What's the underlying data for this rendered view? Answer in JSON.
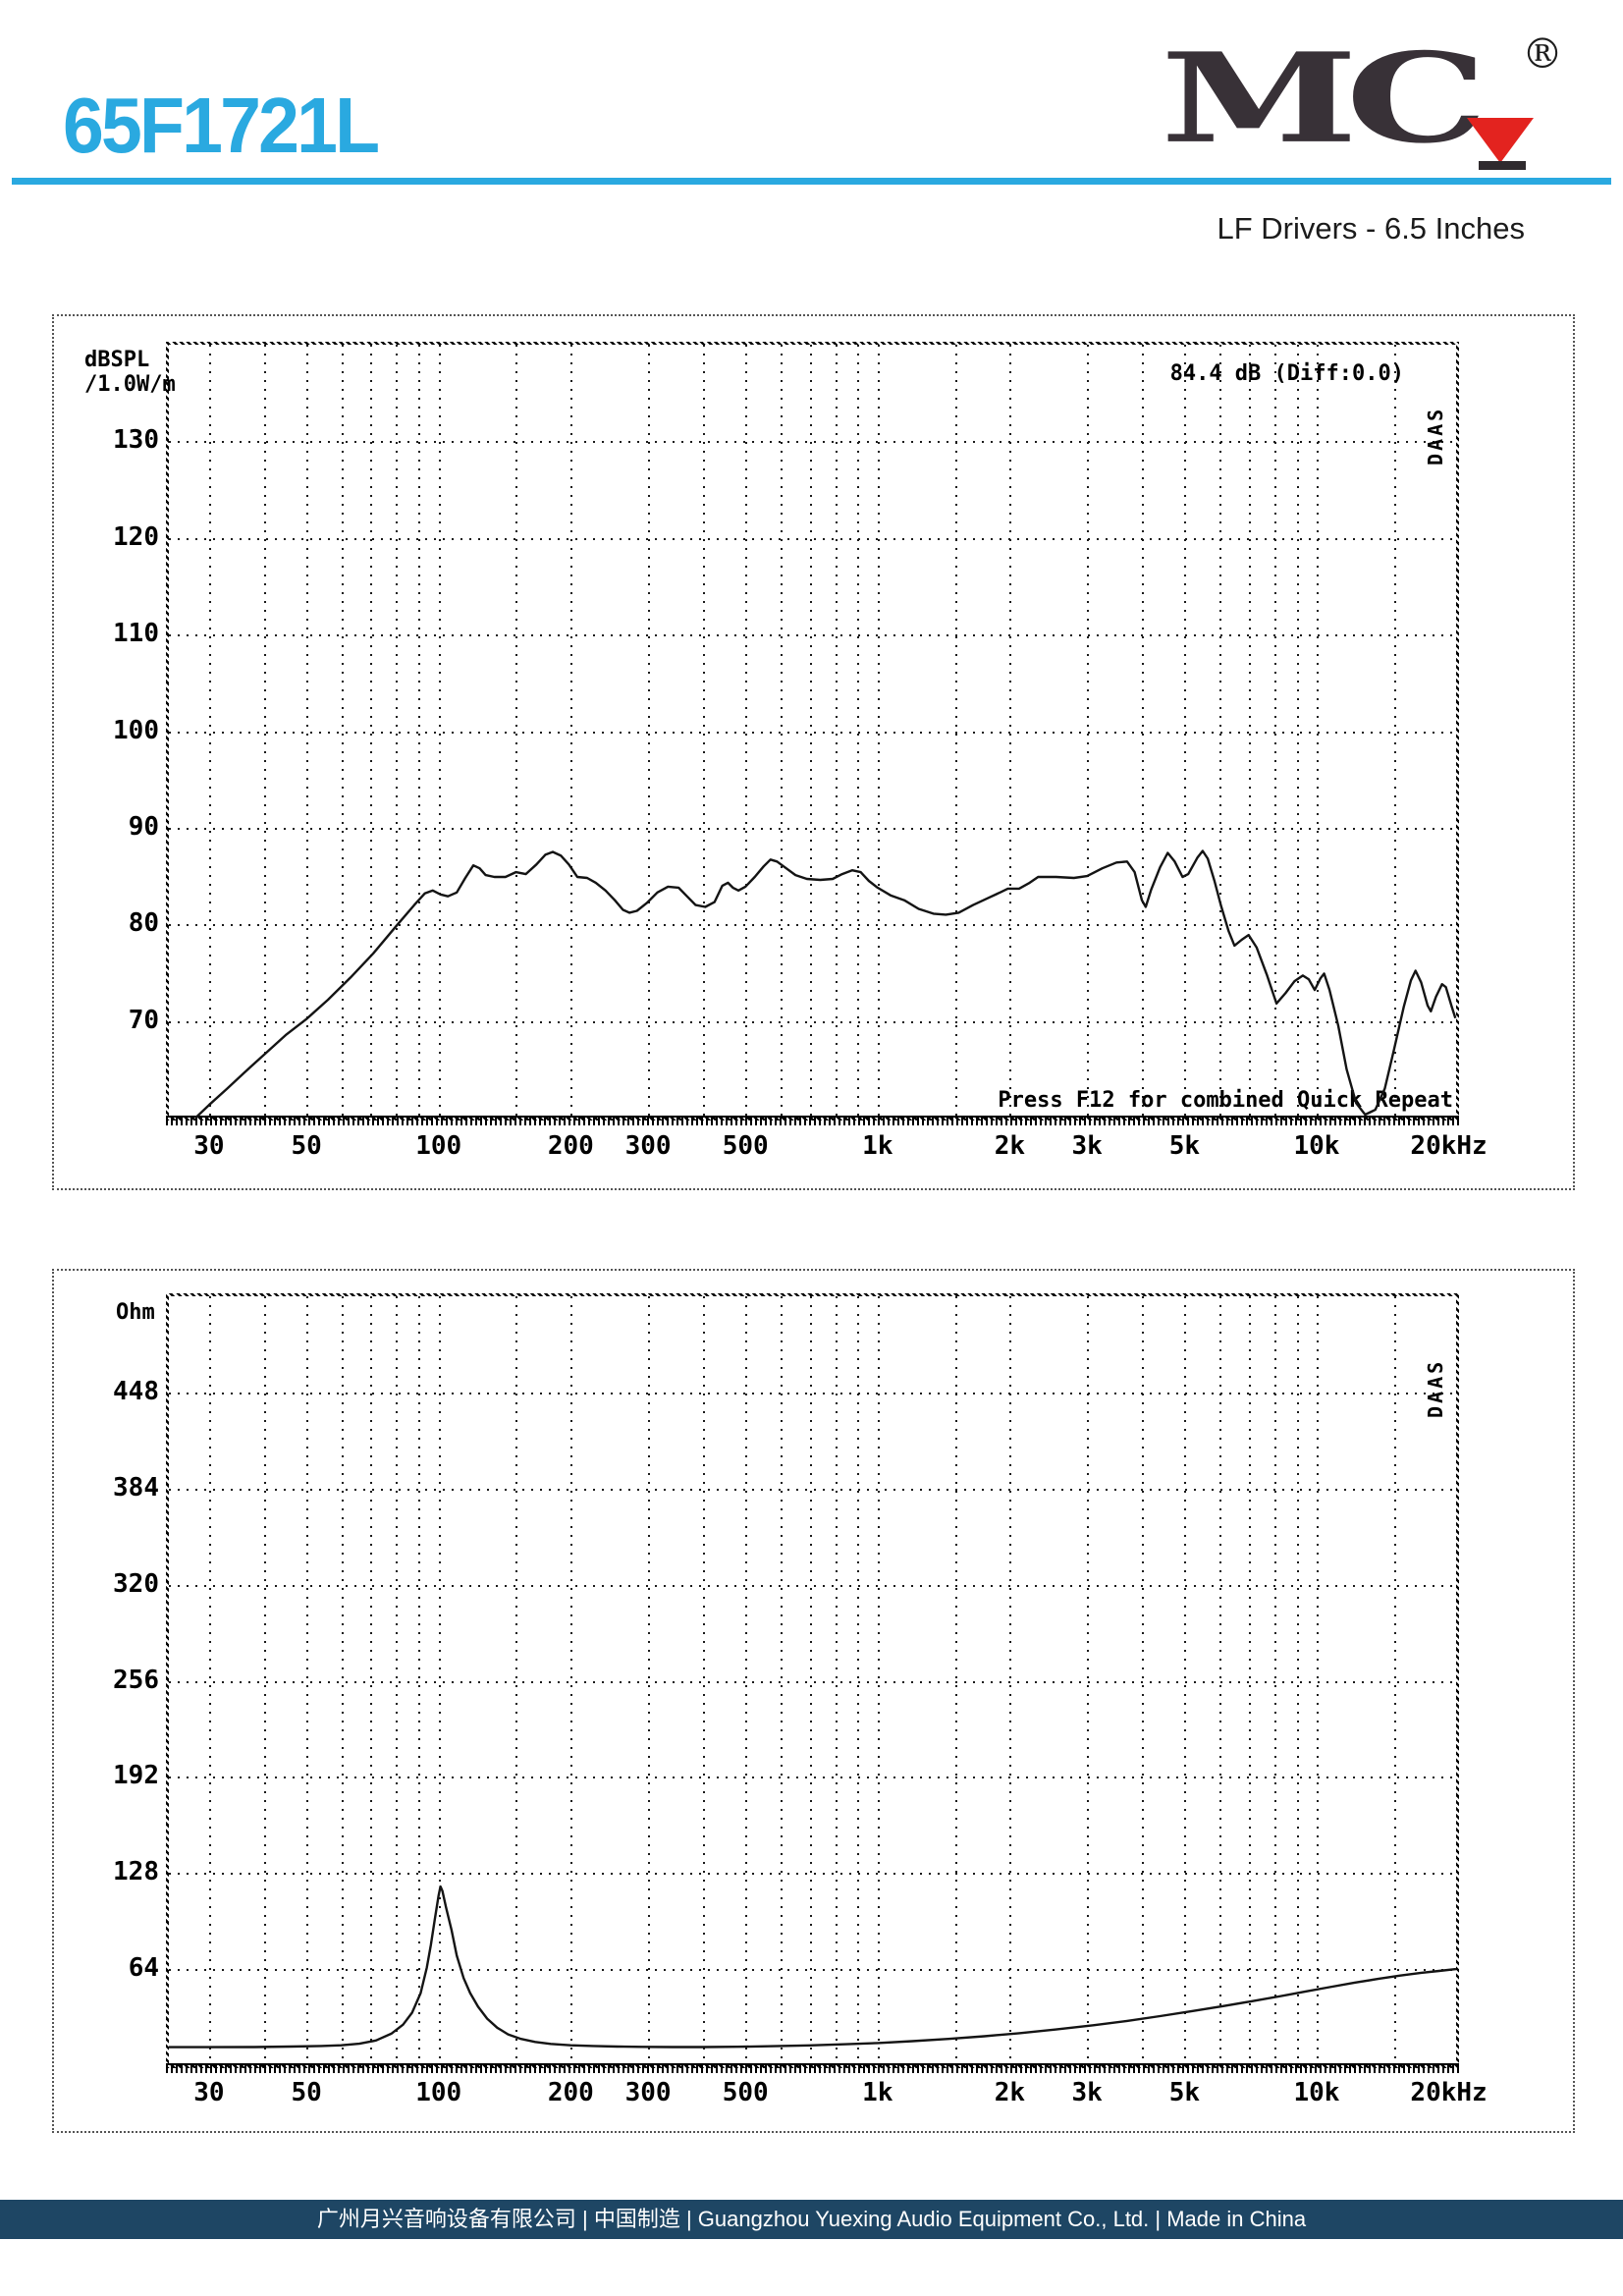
{
  "header": {
    "model": "65F1721L",
    "subtitle": "LF Drivers - 6.5 Inches",
    "accent_color": "#2aa9e0",
    "logo": {
      "m": "M",
      "c": "C",
      "reg": "®",
      "color": "#383137",
      "triangle_color": "#e3231f"
    }
  },
  "chart_data": [
    {
      "type": "line",
      "title": "SPL frequency response",
      "ylabel_lines": [
        "dBSPL",
        "/1.0W/m"
      ],
      "annotation": "84.4 dB (Diff:0.0)",
      "footnote": "Press F12 for combined Quick Repeat",
      "watermark": "DAAS",
      "xlim": [
        24.3,
        20780
      ],
      "ylim": [
        60,
        140
      ],
      "y_ticks": [
        130,
        120,
        110,
        100,
        90,
        80,
        70
      ],
      "x_ticks": [
        {
          "f": 30,
          "label": "30"
        },
        {
          "f": 50,
          "label": "50"
        },
        {
          "f": 100,
          "label": "100"
        },
        {
          "f": 200,
          "label": "200"
        },
        {
          "f": 300,
          "label": "300"
        },
        {
          "f": 500,
          "label": "500"
        },
        {
          "f": 1000,
          "label": "1k"
        },
        {
          "f": 2000,
          "label": "2k"
        },
        {
          "f": 3000,
          "label": "3k"
        },
        {
          "f": 5000,
          "label": "5k"
        },
        {
          "f": 10000,
          "label": "10k"
        },
        {
          "f": 20000,
          "label": "20kHz"
        }
      ],
      "grid_freqs": [
        30,
        40,
        50,
        60,
        70,
        80,
        90,
        100,
        150,
        200,
        300,
        400,
        500,
        600,
        700,
        800,
        900,
        1000,
        1500,
        2000,
        3000,
        4000,
        5000,
        6000,
        7000,
        8000,
        9000,
        10000,
        15000
      ],
      "points": [
        [
          28,
          60
        ],
        [
          30,
          61.3
        ],
        [
          33,
          63
        ],
        [
          36,
          64.6
        ],
        [
          40,
          66.5
        ],
        [
          45,
          68.6
        ],
        [
          50,
          70.2
        ],
        [
          56,
          72.2
        ],
        [
          63,
          74.5
        ],
        [
          71,
          77
        ],
        [
          80,
          79.8
        ],
        [
          88,
          82
        ],
        [
          93,
          83.2
        ],
        [
          97,
          83.5
        ],
        [
          101,
          83.1
        ],
        [
          105,
          82.9
        ],
        [
          110,
          83.3
        ],
        [
          115,
          84.8
        ],
        [
          120,
          86.1
        ],
        [
          124,
          85.8
        ],
        [
          128,
          85.1
        ],
        [
          134,
          84.9
        ],
        [
          142,
          84.9
        ],
        [
          150,
          85.4
        ],
        [
          158,
          85.2
        ],
        [
          167,
          86.2
        ],
        [
          175,
          87.2
        ],
        [
          182,
          87.5
        ],
        [
          190,
          87.1
        ],
        [
          198,
          86.2
        ],
        [
          207,
          84.9
        ],
        [
          218,
          84.8
        ],
        [
          228,
          84.3
        ],
        [
          240,
          83.5
        ],
        [
          252,
          82.5
        ],
        [
          263,
          81.5
        ],
        [
          272,
          81.2
        ],
        [
          283,
          81.4
        ],
        [
          298,
          82.2
        ],
        [
          315,
          83.3
        ],
        [
          333,
          83.9
        ],
        [
          352,
          83.8
        ],
        [
          368,
          82.9
        ],
        [
          385,
          82
        ],
        [
          405,
          81.8
        ],
        [
          425,
          82.3
        ],
        [
          443,
          84
        ],
        [
          456,
          84.3
        ],
        [
          468,
          83.8
        ],
        [
          482,
          83.5
        ],
        [
          500,
          83.9
        ],
        [
          525,
          84.9
        ],
        [
          550,
          86
        ],
        [
          570,
          86.7
        ],
        [
          590,
          86.5
        ],
        [
          615,
          85.9
        ],
        [
          650,
          85.1
        ],
        [
          690,
          84.7
        ],
        [
          740,
          84.6
        ],
        [
          790,
          84.7
        ],
        [
          830,
          85.2
        ],
        [
          875,
          85.6
        ],
        [
          915,
          85.4
        ],
        [
          955,
          84.5
        ],
        [
          1000,
          83.8
        ],
        [
          1070,
          83
        ],
        [
          1150,
          82.5
        ],
        [
          1240,
          81.6
        ],
        [
          1340,
          81.1
        ],
        [
          1430,
          81
        ],
        [
          1530,
          81.2
        ],
        [
          1650,
          82
        ],
        [
          1800,
          82.8
        ],
        [
          1900,
          83.3
        ],
        [
          1980,
          83.7
        ],
        [
          2100,
          83.7
        ],
        [
          2220,
          84.3
        ],
        [
          2320,
          84.9
        ],
        [
          2550,
          84.9
        ],
        [
          2800,
          84.8
        ],
        [
          3000,
          85
        ],
        [
          3250,
          85.8
        ],
        [
          3500,
          86.4
        ],
        [
          3700,
          86.5
        ],
        [
          3850,
          85.4
        ],
        [
          4000,
          82.5
        ],
        [
          4080,
          81.8
        ],
        [
          4200,
          83.6
        ],
        [
          4400,
          85.9
        ],
        [
          4580,
          87.4
        ],
        [
          4750,
          86.5
        ],
        [
          4950,
          84.9
        ],
        [
          5100,
          85.2
        ],
        [
          5350,
          86.9
        ],
        [
          5500,
          87.6
        ],
        [
          5650,
          86.8
        ],
        [
          5850,
          84.5
        ],
        [
          6050,
          82
        ],
        [
          6300,
          79.3
        ],
        [
          6500,
          77.8
        ],
        [
          6750,
          78.4
        ],
        [
          7000,
          78.9
        ],
        [
          7300,
          77.6
        ],
        [
          7700,
          74.8
        ],
        [
          8100,
          71.8
        ],
        [
          8500,
          72.9
        ],
        [
          8900,
          74.1
        ],
        [
          9300,
          74.7
        ],
        [
          9600,
          74.3
        ],
        [
          9900,
          73.2
        ],
        [
          10200,
          74.4
        ],
        [
          10400,
          74.9
        ],
        [
          10700,
          73.2
        ],
        [
          11200,
          69.5
        ],
        [
          11700,
          65
        ],
        [
          12300,
          61.5
        ],
        [
          12900,
          60.3
        ],
        [
          13600,
          60.8
        ],
        [
          14300,
          63
        ],
        [
          15000,
          67
        ],
        [
          15800,
          71.5
        ],
        [
          16400,
          74.2
        ],
        [
          16800,
          75.2
        ],
        [
          17300,
          74
        ],
        [
          17900,
          71.6
        ],
        [
          18200,
          71
        ],
        [
          18700,
          72.5
        ],
        [
          19300,
          73.8
        ],
        [
          19700,
          73.5
        ],
        [
          20300,
          71.5
        ],
        [
          20700,
          70.3
        ]
      ]
    },
    {
      "type": "line",
      "title": "Impedance curve",
      "ylabel_lines": [
        "Ohm"
      ],
      "watermark": "DAAS",
      "xlim": [
        24.3,
        20780
      ],
      "ylim": [
        0,
        512
      ],
      "y_ticks": [
        448,
        384,
        320,
        256,
        192,
        128,
        64
      ],
      "x_ticks": [
        {
          "f": 30,
          "label": "30"
        },
        {
          "f": 50,
          "label": "50"
        },
        {
          "f": 100,
          "label": "100"
        },
        {
          "f": 200,
          "label": "200"
        },
        {
          "f": 300,
          "label": "300"
        },
        {
          "f": 500,
          "label": "500"
        },
        {
          "f": 1000,
          "label": "1k"
        },
        {
          "f": 2000,
          "label": "2k"
        },
        {
          "f": 3000,
          "label": "3k"
        },
        {
          "f": 5000,
          "label": "5k"
        },
        {
          "f": 10000,
          "label": "10k"
        },
        {
          "f": 20000,
          "label": "20kHz"
        }
      ],
      "grid_freqs": [
        30,
        40,
        50,
        60,
        70,
        80,
        90,
        100,
        150,
        200,
        300,
        400,
        500,
        600,
        700,
        800,
        900,
        1000,
        1500,
        2000,
        3000,
        4000,
        5000,
        6000,
        7000,
        8000,
        9000,
        10000,
        15000
      ],
      "points": [
        [
          24.3,
          12
        ],
        [
          30,
          12
        ],
        [
          38,
          12.1
        ],
        [
          46,
          12.4
        ],
        [
          54,
          12.8
        ],
        [
          60,
          13.3
        ],
        [
          66,
          14.3
        ],
        [
          72,
          16.5
        ],
        [
          78,
          21
        ],
        [
          83,
          27
        ],
        [
          87,
          35
        ],
        [
          91,
          48
        ],
        [
          94,
          65
        ],
        [
          96,
          80
        ],
        [
          98,
          97
        ],
        [
          100,
          113
        ],
        [
          101,
          119
        ],
        [
          102,
          116
        ],
        [
          104,
          105
        ],
        [
          107,
          90
        ],
        [
          110,
          73
        ],
        [
          114,
          58
        ],
        [
          118,
          48
        ],
        [
          123,
          39
        ],
        [
          129,
          31
        ],
        [
          136,
          25
        ],
        [
          144,
          20.5
        ],
        [
          154,
          17.5
        ],
        [
          166,
          15.5
        ],
        [
          180,
          14.2
        ],
        [
          200,
          13.3
        ],
        [
          225,
          12.8
        ],
        [
          255,
          12.4
        ],
        [
          290,
          12.2
        ],
        [
          340,
          12.1
        ],
        [
          400,
          12.1
        ],
        [
          480,
          12.3
        ],
        [
          580,
          12.7
        ],
        [
          700,
          13.2
        ],
        [
          850,
          14
        ],
        [
          1000,
          14.8
        ],
        [
          1200,
          16
        ],
        [
          1450,
          17.5
        ],
        [
          1750,
          19.3
        ],
        [
          2100,
          21.3
        ],
        [
          2550,
          23.8
        ],
        [
          3100,
          26.6
        ],
        [
          3700,
          29.5
        ],
        [
          4400,
          32.7
        ],
        [
          5200,
          36
        ],
        [
          6100,
          39.3
        ],
        [
          7100,
          42.6
        ],
        [
          8200,
          45.8
        ],
        [
          9400,
          49
        ],
        [
          10700,
          52
        ],
        [
          12200,
          55
        ],
        [
          13800,
          57.5
        ],
        [
          15500,
          59.7
        ],
        [
          17300,
          61.5
        ],
        [
          19000,
          62.8
        ],
        [
          20780,
          64
        ]
      ]
    }
  ],
  "footer": {
    "text": "广州月兴音响设备有限公司 | 中国制造 | Guangzhou Yuexing Audio Equipment Co., Ltd. | Made in China",
    "bg": "#1e4664"
  }
}
